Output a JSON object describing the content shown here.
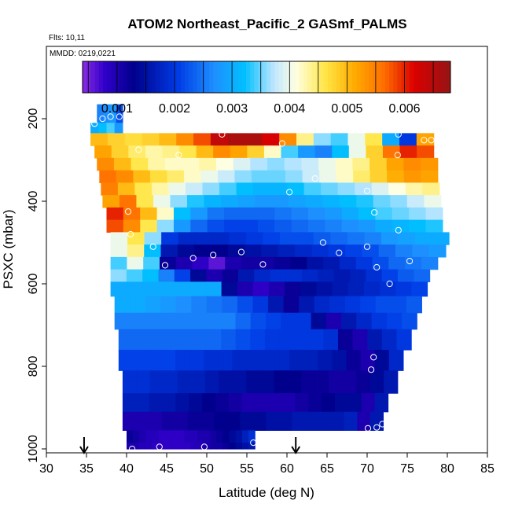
{
  "chart_data": {
    "type": "heatmap",
    "title": "ATOM2 Northeast_Pacific_2 GASmf_PALMS",
    "flights_label": "Flts: 10,11",
    "mmdd_label": "MMDD: 0219,0221",
    "xlabel": "Latitude (deg N)",
    "ylabel": "PSXC (mbar)",
    "xlim": [
      30,
      85
    ],
    "ylim": [
      1000,
      0
    ],
    "x_ticks": [
      "30",
      "35",
      "40",
      "45",
      "50",
      "55",
      "60",
      "65",
      "70",
      "75",
      "80",
      "85"
    ],
    "y_ticks": [
      "200",
      "400",
      "600",
      "800",
      "1000"
    ],
    "colorbar": {
      "vmin": 0.0004,
      "vmax": 0.0068,
      "tick_labels": [
        "0.001",
        "0.002",
        "0.003",
        "0.004",
        "0.005",
        "0.006"
      ],
      "tick_values": [
        0.001,
        0.002,
        0.003,
        0.004,
        0.005,
        0.006
      ]
    },
    "arrows_lat": [
      34.7,
      61.1
    ],
    "bands": [
      {
        "p": [
          165,
          210
        ],
        "lat": [
          36.3,
          39.5
        ],
        "values": [
          0.0026,
          0.0027,
          0.0028,
          0.0022
        ]
      },
      {
        "p": [
          210,
          235
        ],
        "lat": [
          35.5,
          39.5
        ],
        "values": [
          0.003,
          0.0032,
          0.0034,
          0.0028
        ]
      },
      {
        "p": [
          235,
          265
        ],
        "lat": [
          35.5,
          78.3
        ],
        "values": [
          0.005,
          0.0048,
          0.0047,
          0.0048,
          0.005,
          0.0054,
          0.0058,
          0.0064,
          0.0066,
          0.0066,
          0.0062,
          0.0054,
          0.0044,
          0.0036,
          0.0034,
          0.004,
          0.0046,
          0.003,
          0.002,
          0.0052
        ]
      },
      {
        "p": [
          265,
          295
        ],
        "lat": [
          36.0,
          78.3
        ],
        "values": [
          0.0052,
          0.0048,
          0.0045,
          0.0043,
          0.0044,
          0.0046,
          0.005,
          0.0054,
          0.0052,
          0.0048,
          0.0042,
          0.0034,
          0.0028,
          0.0026,
          0.0032,
          0.004,
          0.0048,
          0.0056,
          0.006,
          0.0058
        ]
      },
      {
        "p": [
          295,
          325
        ],
        "lat": [
          36.3,
          78.8
        ],
        "values": [
          0.0054,
          0.005,
          0.0046,
          0.0043,
          0.0042,
          0.0042,
          0.0043,
          0.0041,
          0.0039,
          0.0037,
          0.0036,
          0.0037,
          0.0038,
          0.004,
          0.0042,
          0.0044,
          0.0048,
          0.0052,
          0.0054,
          0.0053
        ]
      },
      {
        "p": [
          325,
          355
        ],
        "lat": [
          36.6,
          78.8
        ],
        "values": [
          0.0056,
          0.0054,
          0.005,
          0.0047,
          0.0045,
          0.0042,
          0.004,
          0.0038,
          0.0036,
          0.0035,
          0.0035,
          0.0036,
          0.0038,
          0.004,
          0.0042,
          0.0045,
          0.0048,
          0.0051,
          0.0053,
          0.0052
        ]
      },
      {
        "p": [
          355,
          385
        ],
        "lat": [
          36.8,
          79.0
        ],
        "values": [
          0.0055,
          0.005,
          0.0046,
          0.0043,
          0.004,
          0.0038,
          0.0036,
          0.0034,
          0.0032,
          0.0031,
          0.0031,
          0.0032,
          0.0034,
          0.0035,
          0.0036,
          0.0037,
          0.0039,
          0.0041,
          0.0043,
          0.0044
        ]
      },
      {
        "p": [
          385,
          415
        ],
        "lat": [
          37.0,
          79.2
        ],
        "values": [
          0.0052,
          0.0056,
          0.0046,
          0.004,
          0.0036,
          0.0033,
          0.0031,
          0.003,
          0.0029,
          0.0028,
          0.0028,
          0.0029,
          0.003,
          0.0031,
          0.0032,
          0.0033,
          0.0035,
          0.0036,
          0.0038,
          0.004
        ]
      },
      {
        "p": [
          415,
          445
        ],
        "lat": [
          37.5,
          79.4
        ],
        "values": [
          0.006,
          0.0056,
          0.005,
          0.0042,
          0.0032,
          0.0028,
          0.0025,
          0.0024,
          0.0024,
          0.0024,
          0.0025,
          0.0026,
          0.0027,
          0.0028,
          0.003,
          0.0032,
          0.0034,
          0.0035,
          0.0036,
          0.0037
        ]
      },
      {
        "p": [
          445,
          475
        ],
        "lat": [
          37.5,
          79.4
        ],
        "values": [
          0.0058,
          0.0054,
          0.0046,
          0.0036,
          0.0028,
          0.0024,
          0.0022,
          0.0021,
          0.0021,
          0.0022,
          0.0023,
          0.0024,
          0.0025,
          0.0026,
          0.0027,
          0.0028,
          0.003,
          0.0031,
          0.0032,
          0.0033
        ]
      },
      {
        "p": [
          475,
          505
        ],
        "lat": [
          38.0,
          80.2
        ],
        "values": [
          0.004,
          0.0046,
          0.0036,
          0.002,
          0.0018,
          0.0018,
          0.0018,
          0.0019,
          0.002,
          0.0021,
          0.0022,
          0.0022,
          0.0023,
          0.0024,
          0.0025,
          0.0026,
          0.0028,
          0.0029,
          0.003,
          0.003
        ]
      },
      {
        "p": [
          505,
          535
        ],
        "lat": [
          38.0,
          79.8
        ],
        "values": [
          0.004,
          0.0044,
          0.0032,
          0.0016,
          0.0014,
          0.0013,
          0.0013,
          0.0014,
          0.0015,
          0.0016,
          0.0017,
          0.0018,
          0.0019,
          0.002,
          0.0021,
          0.0022,
          0.0024,
          0.0026,
          0.0027,
          0.0028
        ]
      },
      {
        "p": [
          535,
          565
        ],
        "lat": [
          38.0,
          78.8
        ],
        "values": [
          0.0034,
          0.004,
          0.0034,
          0.0012,
          0.001,
          0.0008,
          0.0006,
          0.001,
          0.0011,
          0.0011,
          0.0012,
          0.0013,
          0.0015,
          0.0016,
          0.0018,
          0.002,
          0.0022,
          0.0024,
          0.0025,
          0.0026
        ]
      },
      {
        "p": [
          565,
          595
        ],
        "lat": [
          38.0,
          77.8
        ],
        "values": [
          0.0036,
          0.0034,
          0.0032,
          0.0026,
          0.0021,
          0.0014,
          0.001,
          0.0012,
          0.0016,
          0.0018,
          0.0019,
          0.0019,
          0.0018,
          0.0017,
          0.0016,
          0.0017,
          0.0019,
          0.0021,
          0.0023,
          0.0024
        ]
      },
      {
        "p": [
          595,
          630
        ],
        "lat": [
          38.0,
          77.5
        ],
        "values": [
          0.003,
          0.003,
          0.003,
          0.003,
          0.003,
          0.003,
          0.003,
          0.0014,
          0.001,
          0.0008,
          0.001,
          0.0012,
          0.0014,
          0.0015,
          0.0016,
          0.0017,
          0.0018,
          0.0019,
          0.002,
          0.0021
        ]
      },
      {
        "p": [
          630,
          670
        ],
        "lat": [
          38.5,
          76.8
        ],
        "values": [
          0.003,
          0.003,
          0.0029,
          0.0028,
          0.0027,
          0.0026,
          0.0025,
          0.0024,
          0.0022,
          0.002,
          0.0016,
          0.0012,
          0.0016,
          0.0018,
          0.0019,
          0.002,
          0.0021,
          0.0022,
          0.0022,
          0.0023
        ]
      },
      {
        "p": [
          670,
          710
        ],
        "lat": [
          38.5,
          76.2
        ],
        "values": [
          0.0026,
          0.0026,
          0.0026,
          0.0026,
          0.0026,
          0.0026,
          0.0026,
          0.0026,
          0.0024,
          0.0022,
          0.0021,
          0.002,
          0.002,
          0.0014,
          0.001,
          0.0016,
          0.0018,
          0.002,
          0.0021,
          0.0022
        ]
      },
      {
        "p": [
          710,
          760
        ],
        "lat": [
          39.0,
          75.5
        ],
        "values": [
          0.0024,
          0.0024,
          0.0024,
          0.0024,
          0.0024,
          0.0024,
          0.0024,
          0.0023,
          0.0022,
          0.0021,
          0.002,
          0.002,
          0.002,
          0.002,
          0.0019,
          0.0012,
          0.001,
          0.0016,
          0.0018,
          0.002
        ]
      },
      {
        "p": [
          760,
          810
        ],
        "lat": [
          39.0,
          74.5
        ],
        "values": [
          0.0021,
          0.0021,
          0.0021,
          0.0021,
          0.002,
          0.002,
          0.0019,
          0.0019,
          0.0018,
          0.0018,
          0.0018,
          0.0018,
          0.0017,
          0.0017,
          0.0016,
          0.0015,
          0.0012,
          0.001,
          0.0014,
          0.0018
        ]
      },
      {
        "p": [
          810,
          865
        ],
        "lat": [
          39.5,
          73.8
        ],
        "values": [
          0.0019,
          0.0019,
          0.0018,
          0.0018,
          0.0017,
          0.0017,
          0.0016,
          0.0015,
          0.0015,
          0.0014,
          0.0014,
          0.0013,
          0.0013,
          0.0012,
          0.0012,
          0.0011,
          0.0011,
          0.0012,
          0.0014,
          0.0016
        ]
      },
      {
        "p": [
          865,
          910
        ],
        "lat": [
          39.5,
          72.6
        ],
        "values": [
          0.0017,
          0.0017,
          0.0016,
          0.0016,
          0.0015,
          0.0014,
          0.0013,
          0.0012,
          0.0011,
          0.001,
          0.001,
          0.001,
          0.001,
          0.0011,
          0.0012,
          0.0013,
          0.0014,
          0.0014,
          0.001,
          0.0016
        ]
      },
      {
        "p": [
          910,
          955
        ],
        "lat": [
          39.5,
          72.0
        ],
        "values": [
          0.001,
          0.001,
          0.001,
          0.0011,
          0.0011,
          0.0012,
          0.0012,
          0.0013,
          0.0013,
          0.0014,
          0.0014,
          0.0015,
          0.0015,
          0.0016,
          0.0016,
          0.0016,
          0.0016,
          0.0017,
          0.001,
          0.0016
        ]
      },
      {
        "p": [
          955,
          985
        ],
        "lat": [
          40.0,
          56.0
        ],
        "values": [
          0.0012,
          0.0011,
          0.001,
          0.0009,
          0.0009,
          0.0008,
          0.0008,
          0.0008,
          0.0008,
          0.0009,
          0.0009,
          0.001,
          0.001,
          0.0011,
          0.0012,
          0.0013,
          0.0014,
          0.0015,
          0.0017,
          0.0019
        ]
      },
      {
        "p": [
          985,
          1000
        ],
        "lat": [
          40.0,
          56.0
        ],
        "values": [
          0.001,
          0.001,
          0.0009,
          0.0009,
          0.0008,
          0.0008,
          0.0008,
          0.0008,
          0.0008,
          0.0008,
          0.0009,
          0.0009,
          0.001,
          0.0011,
          0.0011,
          0.0012,
          0.0013,
          0.0014,
          0.0015,
          0.0016
        ]
      }
    ],
    "samples": [
      [
        37.0,
        200
      ],
      [
        38.0,
        195
      ],
      [
        39.1,
        195
      ],
      [
        36.0,
        212
      ],
      [
        34.8,
        235
      ],
      [
        51.9,
        238
      ],
      [
        73.9,
        238
      ],
      [
        77.1,
        252
      ],
      [
        78.0,
        252
      ],
      [
        41.5,
        275
      ],
      [
        46.5,
        288
      ],
      [
        59.4,
        260
      ],
      [
        73.8,
        288
      ],
      [
        63.5,
        345
      ],
      [
        60.3,
        378
      ],
      [
        70.0,
        375
      ],
      [
        40.2,
        425
      ],
      [
        70.9,
        427
      ],
      [
        73.9,
        470
      ],
      [
        40.5,
        480
      ],
      [
        43.3,
        510
      ],
      [
        64.5,
        500
      ],
      [
        70.0,
        510
      ],
      [
        66.5,
        525
      ],
      [
        48.3,
        538
      ],
      [
        50.8,
        530
      ],
      [
        54.3,
        523
      ],
      [
        57.0,
        553
      ],
      [
        44.8,
        555
      ],
      [
        71.2,
        560
      ],
      [
        75.3,
        545
      ],
      [
        72.8,
        600
      ],
      [
        70.8,
        778
      ],
      [
        70.5,
        808
      ],
      [
        70.1,
        950
      ],
      [
        71.2,
        948
      ],
      [
        71.9,
        940
      ],
      [
        55.8,
        985
      ],
      [
        44.1,
        995
      ],
      [
        40.7,
        1000
      ],
      [
        49.7,
        995
      ]
    ]
  }
}
